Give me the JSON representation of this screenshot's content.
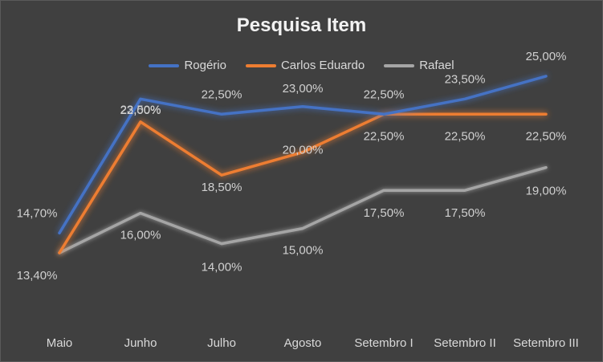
{
  "chart_data": {
    "type": "line",
    "title": "Pesquisa Item",
    "categories": [
      "Maio",
      "Junho",
      "Julho",
      "Agosto",
      "Setembro I",
      "Setembro II",
      "Setembro III"
    ],
    "ylim": [
      0.1,
      0.3
    ],
    "grid": false,
    "legend_position": "top",
    "series": [
      {
        "name": "Rogério",
        "color": "#4472c4",
        "values": [
          0.147,
          0.235,
          0.225,
          0.23,
          0.225,
          0.235,
          0.25
        ],
        "labels": [
          "14,70%",
          "23,50%",
          "22,50%",
          "23,00%",
          "22,50%",
          "23,50%",
          "25,00%"
        ]
      },
      {
        "name": "Carlos Eduardo",
        "color": "#ed7d31",
        "values": [
          0.134,
          0.22,
          0.185,
          0.2,
          0.225,
          0.225,
          0.225
        ],
        "labels": [
          "13,40%",
          "22,00%",
          "18,50%",
          "20,00%",
          "22,50%",
          "22,50%",
          "22,50%"
        ]
      },
      {
        "name": "Rafael",
        "color": "#a5a5a5",
        "values": [
          0.134,
          0.16,
          0.14,
          0.15,
          0.175,
          0.175,
          0.19
        ],
        "labels": [
          "13,40%",
          "16,00%",
          "14,00%",
          "15,00%",
          "17,50%",
          "17,50%",
          "19,00%"
        ]
      }
    ]
  }
}
